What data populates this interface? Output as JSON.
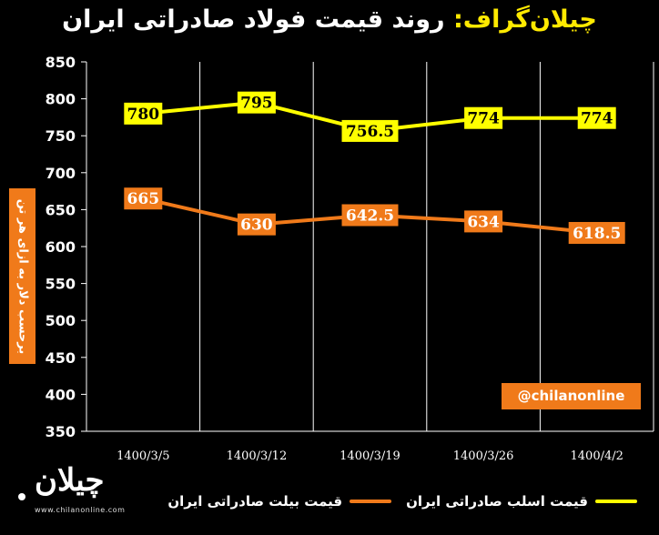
{
  "header": {
    "brand": "چیلان‌گراف:",
    "title": "روند قیمت فولاد صادراتی ایران"
  },
  "watermark": {
    "handle": "@chilanonline",
    "logo_text": "چیلان",
    "site": "www.chilanonline.com"
  },
  "colors": {
    "background": "#000000",
    "slab": "#ffff00",
    "billet": "#f07a1a",
    "grid": "#ffffff"
  },
  "chart_data": {
    "type": "line",
    "categories": [
      "1400/3/5",
      "1400/3/12",
      "1400/3/19",
      "1400/3/26",
      "1400/4/2"
    ],
    "ylabel": "برحسب دلار به ازای هر تن",
    "ylim": [
      350,
      850
    ],
    "yticks": [
      350,
      400,
      450,
      500,
      550,
      600,
      650,
      700,
      750,
      800,
      850
    ],
    "grid": "vertical",
    "legend_position": "bottom",
    "series": [
      {
        "key": "slab",
        "name": "قیمت اسلب صادراتی ایران",
        "color": "#ffff00",
        "values": [
          780,
          795,
          756.5,
          774,
          774
        ],
        "labels": [
          "780",
          "795",
          "756.5",
          "774",
          "774"
        ]
      },
      {
        "key": "billet",
        "name": "قیمت بیلت صادراتی ایران",
        "color": "#f07a1a",
        "values": [
          665,
          630,
          642.5,
          634,
          618.5
        ],
        "labels": [
          "665",
          "630",
          "642.5",
          "634",
          "618.5"
        ]
      }
    ]
  }
}
